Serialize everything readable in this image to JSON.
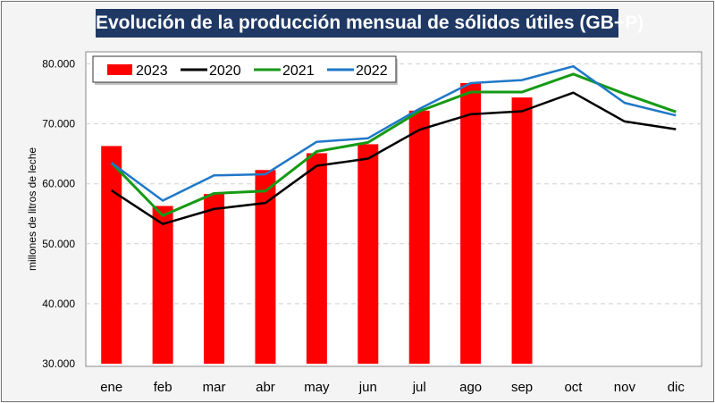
{
  "chart_data": {
    "type": "bar+line",
    "title": "Evolución de la producción mensual de sólidos útiles (GB+P)",
    "xlabel": "",
    "ylabel": "millones de litros de leche",
    "ylim": [
      30000,
      80000
    ],
    "yticks": [
      "30.000",
      "40.000",
      "50.000",
      "60.000",
      "70.000",
      "80.000"
    ],
    "ytick_values": [
      30000,
      40000,
      50000,
      60000,
      70000,
      80000
    ],
    "grid": true,
    "legend_position": "top-left",
    "categories": [
      "ene",
      "feb",
      "mar",
      "abr",
      "may",
      "jun",
      "jul",
      "ago",
      "sep",
      "oct",
      "nov",
      "dic"
    ],
    "series": [
      {
        "name": "2023",
        "kind": "bar",
        "color": "#ff0000",
        "values": [
          66300,
          56300,
          58300,
          62300,
          65100,
          66600,
          72200,
          76800,
          74400,
          null,
          null,
          null
        ]
      },
      {
        "name": "2020",
        "kind": "line",
        "color": "#000000",
        "values": [
          58900,
          53300,
          55800,
          56800,
          63000,
          64200,
          69000,
          71600,
          72100,
          75200,
          70400,
          69100
        ]
      },
      {
        "name": "2021",
        "kind": "line",
        "color": "#159a15",
        "values": [
          63500,
          54700,
          58400,
          58800,
          65400,
          66900,
          72100,
          75300,
          75300,
          78300,
          75000,
          72000
        ]
      },
      {
        "name": "2022",
        "kind": "line",
        "color": "#1f78c8",
        "values": [
          63500,
          57200,
          61400,
          61600,
          67000,
          67600,
          72500,
          76800,
          77300,
          79600,
          73500,
          71400
        ]
      }
    ]
  }
}
